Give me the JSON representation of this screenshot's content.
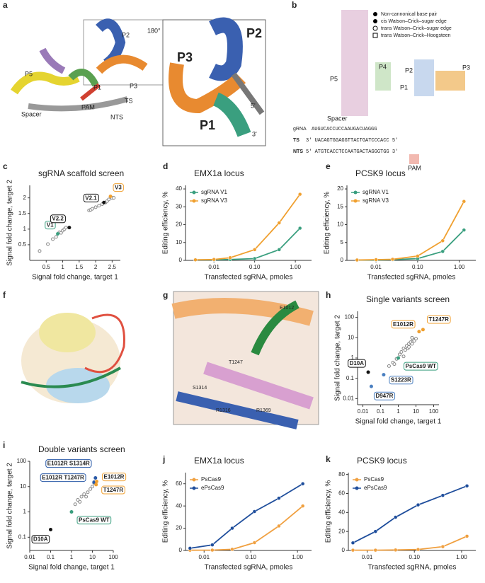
{
  "figure": {
    "panel_labels": [
      "a",
      "b",
      "c",
      "d",
      "e",
      "f",
      "g",
      "h",
      "i",
      "j",
      "k"
    ],
    "a": {
      "small": [
        "P2",
        "P5",
        "P1",
        "P3",
        "TS",
        "Spacer",
        "PAM",
        "NTS"
      ],
      "rotation": "180°",
      "zoom": [
        "P2",
        "P3",
        "P1",
        "5'",
        "3'"
      ]
    },
    "b": {
      "legend": [
        "Non-cannonical base pair",
        "cis Watson–Crick–sugar edge",
        "trans Watson–Crick–sugar edge",
        "trans Watson–Crick–Hoogsteen"
      ],
      "stems": [
        "P5",
        "P4",
        "P1",
        "P2",
        "P3",
        "Spacer",
        "PAM"
      ],
      "strands": [
        {
          "name": "gRNA",
          "seq": "AUGUCACCUCCAAUGACUAGGG"
        },
        {
          "name": "TS",
          "seq": "3' UACAGTGGAGGTTACTGATCCCACC 5'"
        },
        {
          "name": "NTS",
          "seq": "5' ATGTCACCTCCAATGACTAGGGTGG 3'"
        }
      ]
    },
    "g": {
      "residues": [
        "E1012",
        "T1247",
        "S1314",
        "R1316",
        "R1369"
      ]
    }
  },
  "chart_data": [
    {
      "type": "scatter",
      "title": "sgRNA scaffold screen",
      "xlabel": "Signal fold change, target 1",
      "ylabel": "Signal fold change, target 2",
      "xlim": [
        0,
        2.75
      ],
      "ylim": [
        0,
        2.4
      ],
      "xticks": [
        0.5,
        1.0,
        1.5,
        2.0,
        2.5
      ],
      "yticks": [
        0.5,
        1.0,
        1.5,
        2.0
      ],
      "color": "#888888",
      "x": [
        0.3,
        0.55,
        0.7,
        0.8,
        0.9,
        0.95,
        1.0,
        1.05,
        1.1,
        1.8,
        1.85,
        1.9,
        2.0,
        2.1,
        2.2,
        2.3,
        2.35,
        2.4,
        2.5,
        2.55
      ],
      "values": [
        0.3,
        0.52,
        0.68,
        0.75,
        0.9,
        0.88,
        0.95,
        1.0,
        1.05,
        1.6,
        1.62,
        1.65,
        1.7,
        1.75,
        1.8,
        1.85,
        1.9,
        1.95,
        2.0,
        2.0
      ],
      "annotations": [
        {
          "label": "V1",
          "x": 0.85,
          "y": 0.85,
          "color": "#3a9f7f"
        },
        {
          "label": "V2.2",
          "x": 1.2,
          "y": 1.05,
          "color": "#111111"
        },
        {
          "label": "V2.1",
          "x": 2.25,
          "y": 1.85,
          "color": "#111111"
        },
        {
          "label": "V3",
          "x": 2.45,
          "y": 2.05,
          "color": "#f0a030"
        }
      ]
    },
    {
      "type": "line",
      "title": "EMX1a locus",
      "xlabel": "Transfected sgRNA, pmoles",
      "ylabel": "Editing efficiency, %",
      "xlog": true,
      "xlim": [
        0.002,
        2.5
      ],
      "ylim": [
        0,
        42
      ],
      "xticks": [
        0.01,
        {
          "value": 0.1,
          "label": "0.10"
        },
        {
          "value": 1,
          "label": "1.00"
        }
      ],
      "yticks": [
        0,
        10,
        20,
        30,
        40
      ],
      "x": [
        0.0035,
        0.01,
        0.025,
        0.1,
        0.4,
        1.3
      ],
      "series": [
        {
          "name": "sgRNA V1",
          "color": "#3a9f7f",
          "values": [
            0.3,
            0.3,
            0.5,
            1,
            6,
            18
          ]
        },
        {
          "name": "sgRNA V3",
          "color": "#f0a030",
          "values": [
            0.3,
            0.5,
            1.5,
            6,
            21,
            37
          ]
        }
      ]
    },
    {
      "type": "line",
      "title": "PCSK9 locus",
      "xlabel": "Transfected sgRNA, pmoles",
      "ylabel": "Editing efficiency, %",
      "xlog": true,
      "xlim": [
        0.002,
        2.5
      ],
      "ylim": [
        0,
        21
      ],
      "xticks": [
        0.01,
        {
          "value": 0.1,
          "label": "0.10"
        },
        {
          "value": 1,
          "label": "1.00"
        }
      ],
      "yticks": [
        0,
        5,
        10,
        15,
        20
      ],
      "x": [
        0.0035,
        0.01,
        0.025,
        0.1,
        0.4,
        1.3
      ],
      "series": [
        {
          "name": "sgRNA V1",
          "color": "#3a9f7f",
          "values": [
            0.1,
            0.1,
            0.2,
            0.5,
            2.5,
            8.5
          ]
        },
        {
          "name": "sgRNA V3",
          "color": "#f0a030",
          "values": [
            0.1,
            0.2,
            0.3,
            1.2,
            5.5,
            16.5
          ]
        }
      ]
    },
    {
      "type": "scatter",
      "title": "Single variants screen",
      "xlabel": "Signal fold change, target 1",
      "ylabel": "Signal fold change, target 2",
      "xlog": true,
      "ylog": true,
      "xlim": [
        0.005,
        200
      ],
      "ylim": [
        0.005,
        200
      ],
      "xticks": [
        0.01,
        0.1,
        1,
        10,
        100
      ],
      "yticks": [
        0.01,
        0.1,
        1,
        10,
        100
      ],
      "color": "#888888",
      "x": [
        0.5,
        0.8,
        1.2,
        1.5,
        2,
        2.5,
        3,
        3.5,
        4,
        5,
        6,
        7,
        8,
        10,
        0.3,
        0.6,
        2,
        4,
        6
      ],
      "values": [
        0.6,
        0.9,
        1.5,
        2,
        3,
        2.5,
        4,
        3,
        5,
        6,
        5,
        8,
        7,
        9,
        0.4,
        0.5,
        1.2,
        3.5,
        10
      ],
      "annotations": [
        {
          "label": "E1012R",
          "x": 15,
          "y": 20,
          "color": "#f0a030"
        },
        {
          "label": "T1247R",
          "x": 25,
          "y": 25,
          "color": "#f0a030"
        },
        {
          "label": "PsCas9 WT",
          "x": 1,
          "y": 1,
          "color": "#3a9f7f"
        },
        {
          "label": "S1223R",
          "x": 0.15,
          "y": 0.15,
          "color": "#4a7fc0"
        },
        {
          "label": "D947R",
          "x": 0.03,
          "y": 0.04,
          "color": "#4a7fc0"
        },
        {
          "label": "D10A",
          "x": 0.02,
          "y": 0.2,
          "color": "#111111"
        }
      ]
    },
    {
      "type": "scatter",
      "title": "Double variants screen",
      "xlabel": "Signal fold change, target 1",
      "ylabel": "Signal fold change, target 2",
      "xlog": true,
      "ylog": true,
      "xlim": [
        0.01,
        100
      ],
      "ylim": [
        0.03,
        100
      ],
      "xticks": [
        0.01,
        0.1,
        1,
        10,
        100
      ],
      "yticks": [
        0.1,
        1,
        10,
        100
      ],
      "color": "#888888",
      "x": [
        1.5,
        2,
        2.5,
        3,
        4,
        5,
        6,
        8,
        10,
        12
      ],
      "values": [
        2,
        3,
        2.5,
        4,
        5,
        4,
        6,
        8,
        10,
        14
      ],
      "annotations": [
        {
          "label": "E1012R S1314R",
          "x": 14,
          "y": 22,
          "color": "#2a5aa8"
        },
        {
          "label": "E1012R T1247R",
          "x": 12,
          "y": 15,
          "color": "#2a5aa8"
        },
        {
          "label": "E1012R",
          "x": 16,
          "y": 16,
          "color": "#f0a030"
        },
        {
          "label": "T1247R",
          "x": 15,
          "y": 12,
          "color": "#f0a030"
        },
        {
          "label": "PsCas9 WT",
          "x": 1,
          "y": 1,
          "color": "#3a9f7f"
        },
        {
          "label": "D10A",
          "x": 0.1,
          "y": 0.2,
          "color": "#111111"
        }
      ]
    },
    {
      "type": "line",
      "title": "EMX1a locus",
      "xlabel": "Transfected sgRNA, pmoles",
      "ylabel": "Editing efficiency, %",
      "xlog": true,
      "xlim": [
        0.004,
        2
      ],
      "ylim": [
        0,
        70
      ],
      "xticks": [
        0.01,
        {
          "value": 0.1,
          "label": "0.10"
        },
        {
          "value": 1,
          "label": "1.00"
        }
      ],
      "yticks": [
        0,
        20,
        40,
        60
      ],
      "x": [
        0.005,
        0.015,
        0.04,
        0.12,
        0.4,
        1.3
      ],
      "series": [
        {
          "name": "PsCas9",
          "color": "#f0a040",
          "values": [
            0.2,
            0.3,
            1,
            7,
            22,
            40
          ]
        },
        {
          "name": "ePsCas9",
          "color": "#1f4e9c",
          "values": [
            2,
            5,
            20,
            35,
            47,
            60
          ]
        }
      ]
    },
    {
      "type": "line",
      "title": "PCSK9 locus",
      "xlabel": "Transfected sgRNA, pmoles",
      "ylabel": "Editing efficiency, %",
      "xlog": true,
      "xlim": [
        0.004,
        2
      ],
      "ylim": [
        0,
        82
      ],
      "xticks": [
        0.01,
        {
          "value": 0.1,
          "label": "0.10"
        },
        {
          "value": 1,
          "label": "1.00"
        }
      ],
      "yticks": [
        0,
        20,
        40,
        60,
        80
      ],
      "x": [
        0.005,
        0.015,
        0.04,
        0.12,
        0.4,
        1.3
      ],
      "series": [
        {
          "name": "PsCas9",
          "color": "#f0a040",
          "values": [
            0.3,
            0.3,
            0.5,
            1,
            4,
            15
          ]
        },
        {
          "name": "ePsCas9",
          "color": "#1f4e9c",
          "values": [
            8,
            20,
            35,
            48,
            58,
            68
          ]
        }
      ]
    }
  ]
}
